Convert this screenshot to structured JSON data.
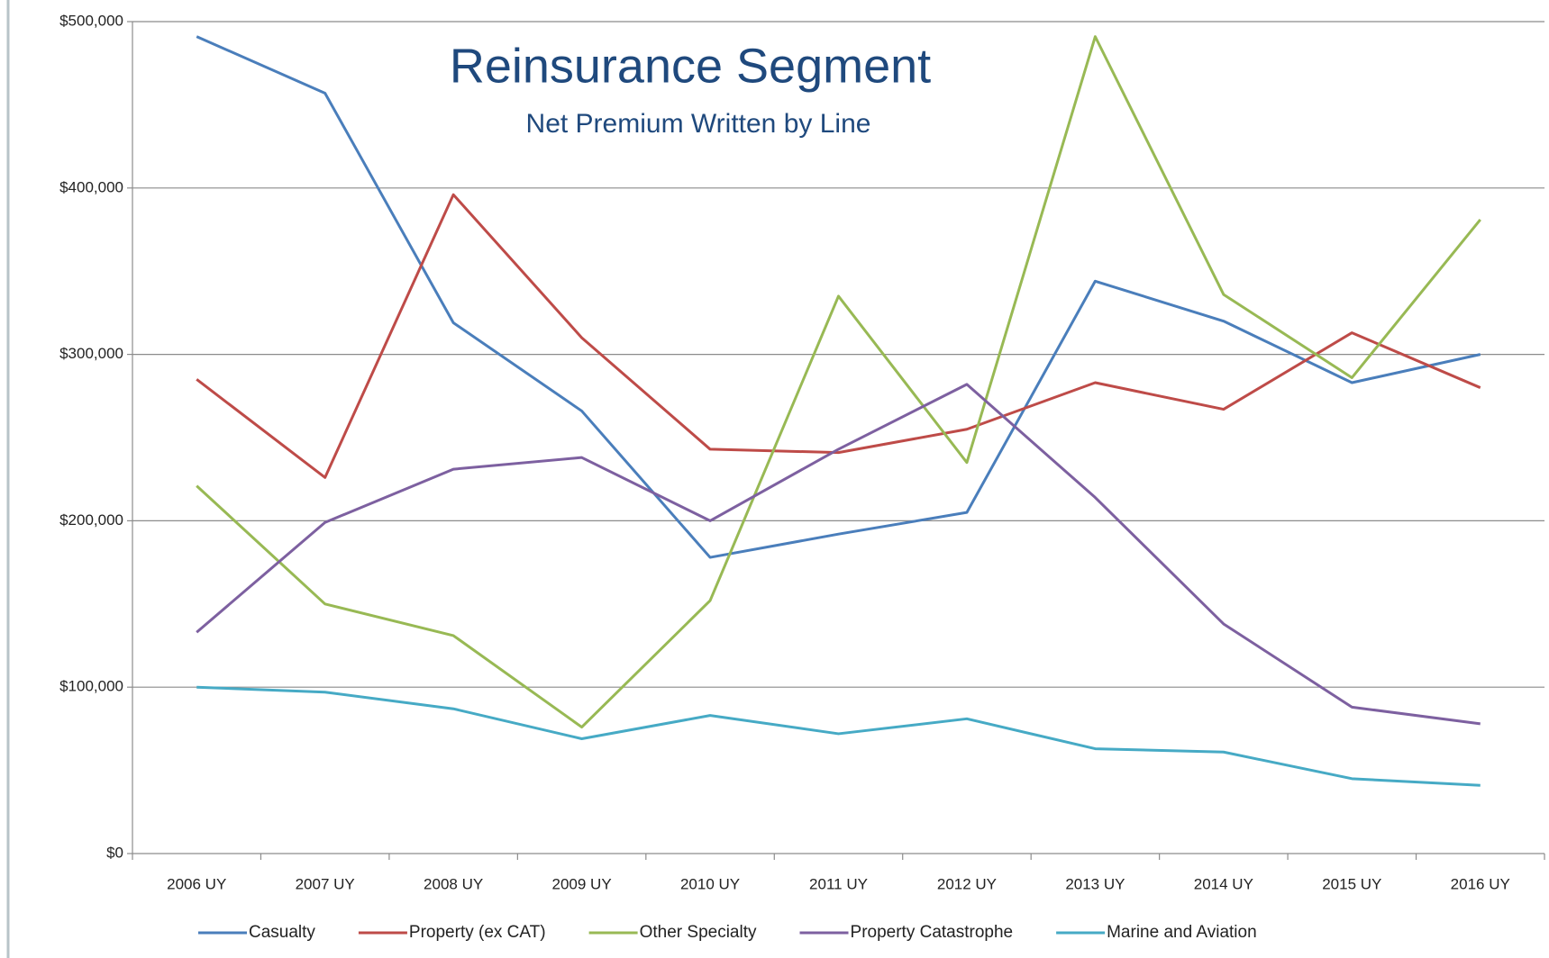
{
  "chart_data": {
    "type": "line",
    "title": "Reinsurance Segment",
    "subtitle": "Net Premium Written by Line",
    "categories": [
      "2006 UY",
      "2007 UY",
      "2008 UY",
      "2009 UY",
      "2010 UY",
      "2011 UY",
      "2012 UY",
      "2013 UY",
      "2014 UY",
      "2015 UY",
      "2016 UY"
    ],
    "series": [
      {
        "name": "Casualty",
        "color": "#4a7ebb",
        "values": [
          491000,
          457000,
          319000,
          266000,
          178000,
          192000,
          205000,
          344000,
          320000,
          283000,
          300000
        ]
      },
      {
        "name": "Property (ex CAT)",
        "color": "#be4b48",
        "values": [
          285000,
          226000,
          396000,
          310000,
          243000,
          241000,
          255000,
          283000,
          267000,
          313000,
          280000
        ]
      },
      {
        "name": "Other Specialty",
        "color": "#98b954",
        "values": [
          221000,
          150000,
          131000,
          76000,
          152000,
          335000,
          235000,
          491000,
          336000,
          286000,
          381000
        ]
      },
      {
        "name": "Property Catastrophe",
        "color": "#7d60a0",
        "values": [
          133000,
          199000,
          231000,
          238000,
          200000,
          243000,
          282000,
          214000,
          138000,
          88000,
          78000
        ]
      },
      {
        "name": "Marine and Aviation",
        "color": "#46aac5",
        "values": [
          100000,
          97000,
          87000,
          69000,
          83000,
          72000,
          81000,
          63000,
          61000,
          45000,
          41000
        ]
      }
    ],
    "ylim": [
      0,
      500000
    ],
    "yticks": [
      {
        "value": 0,
        "label": "$0"
      },
      {
        "value": 100000,
        "label": "$100,000"
      },
      {
        "value": 200000,
        "label": "$200,000"
      },
      {
        "value": 300000,
        "label": "$300,000"
      },
      {
        "value": 400000,
        "label": "$400,000"
      },
      {
        "value": 500000,
        "label": "$500,000"
      }
    ],
    "grid": true,
    "legend": "bottom"
  }
}
